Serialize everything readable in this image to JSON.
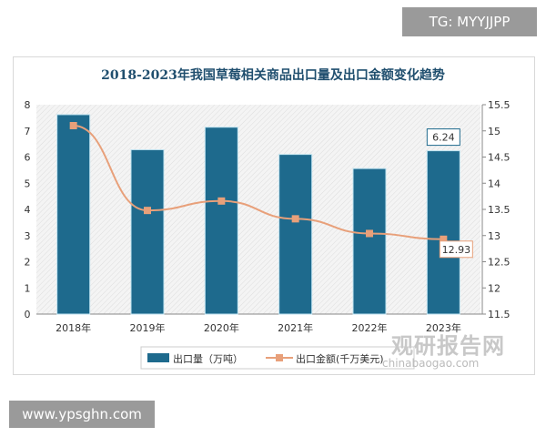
{
  "watermarks": {
    "tg": "TG: MYYJJPP",
    "site": "www.ypsghn.com",
    "brand": "观研报告网",
    "brand_url": "chinabaogao.com"
  },
  "chart_data": {
    "type": "bar+line",
    "title": "2018-2023年我国草莓相关商品出口量及出口金额变化趋势",
    "categories": [
      "2018年",
      "2019年",
      "2020年",
      "2021年",
      "2022年",
      "2023年"
    ],
    "series": [
      {
        "name": "出口量（万吨）",
        "type": "bar",
        "axis": "left",
        "color": "#1e6a8d",
        "values": [
          7.62,
          6.28,
          7.14,
          6.1,
          5.56,
          6.24
        ]
      },
      {
        "name": "出口金额(千万美元)",
        "type": "line",
        "axis": "right",
        "color": "#e8a07a",
        "values": [
          15.1,
          13.48,
          13.66,
          13.32,
          13.04,
          12.93
        ]
      }
    ],
    "left_axis": {
      "ylim": [
        0,
        8
      ],
      "ticks": [
        "0",
        "1",
        "2",
        "3",
        "4",
        "5",
        "6",
        "7",
        "8"
      ]
    },
    "right_axis": {
      "ylim": [
        11.5,
        15.5
      ],
      "ticks": [
        "11.5",
        "12",
        "12.5",
        "13",
        "13.5",
        "14",
        "14.5",
        "15",
        "15.5"
      ]
    },
    "data_labels": {
      "bar_last": "6.24",
      "line_last": "12.93"
    },
    "legend": "bottom"
  }
}
